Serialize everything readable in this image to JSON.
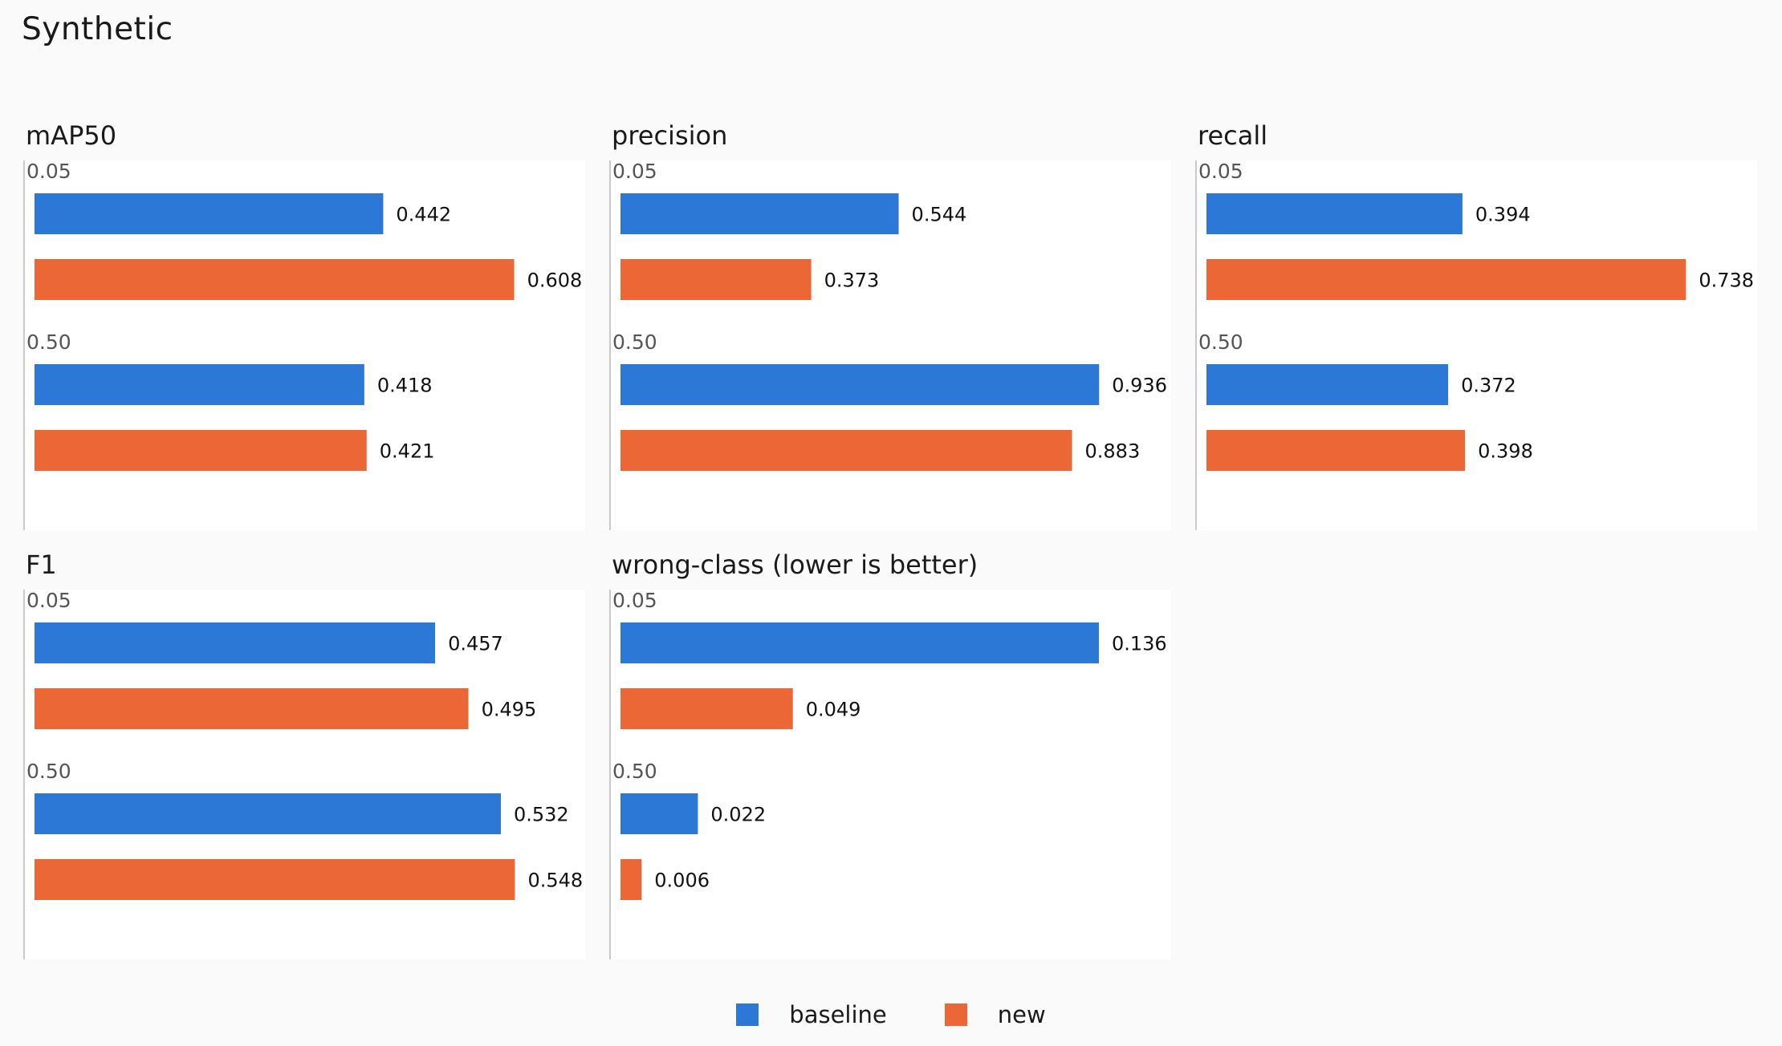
{
  "title": "Synthetic",
  "colors": {
    "baseline": "#2b78d6",
    "new": "#eb6836",
    "group_label": "#555555",
    "value_label": "#111111"
  },
  "legend": [
    {
      "label": "baseline",
      "color": "#2b78d6"
    },
    {
      "label": "new",
      "color": "#eb6836"
    }
  ],
  "chart_data": [
    {
      "type": "bar",
      "orientation": "horizontal",
      "title": "mAP50",
      "groups": [
        "0.05",
        "0.50"
      ],
      "series": [
        {
          "name": "baseline",
          "values": [
            0.442,
            0.418
          ]
        },
        {
          "name": "new",
          "values": [
            0.608,
            0.421
          ]
        }
      ],
      "xlim": [
        0,
        0.7
      ]
    },
    {
      "type": "bar",
      "orientation": "horizontal",
      "title": "precision",
      "groups": [
        "0.05",
        "0.50"
      ],
      "series": [
        {
          "name": "baseline",
          "values": [
            0.544,
            0.936
          ]
        },
        {
          "name": "new",
          "values": [
            0.373,
            0.883
          ]
        }
      ],
      "xlim": [
        0,
        1.08
      ]
    },
    {
      "type": "bar",
      "orientation": "horizontal",
      "title": "recall",
      "groups": [
        "0.05",
        "0.50"
      ],
      "series": [
        {
          "name": "baseline",
          "values": [
            0.394,
            0.372
          ]
        },
        {
          "name": "new",
          "values": [
            0.738,
            0.398
          ]
        }
      ],
      "xlim": [
        0,
        0.85
      ]
    },
    {
      "type": "bar",
      "orientation": "horizontal",
      "title": "F1",
      "groups": [
        "0.05",
        "0.50"
      ],
      "series": [
        {
          "name": "baseline",
          "values": [
            0.457,
            0.532
          ]
        },
        {
          "name": "new",
          "values": [
            0.495,
            0.548
          ]
        }
      ],
      "xlim": [
        0,
        0.63
      ]
    },
    {
      "type": "bar",
      "orientation": "horizontal",
      "title": "wrong-class  (lower is better)",
      "groups": [
        "0.05",
        "0.50"
      ],
      "series": [
        {
          "name": "baseline",
          "values": [
            0.136,
            0.022
          ]
        },
        {
          "name": "new",
          "values": [
            0.049,
            0.006
          ]
        }
      ],
      "xlim": [
        0,
        0.157
      ]
    }
  ]
}
